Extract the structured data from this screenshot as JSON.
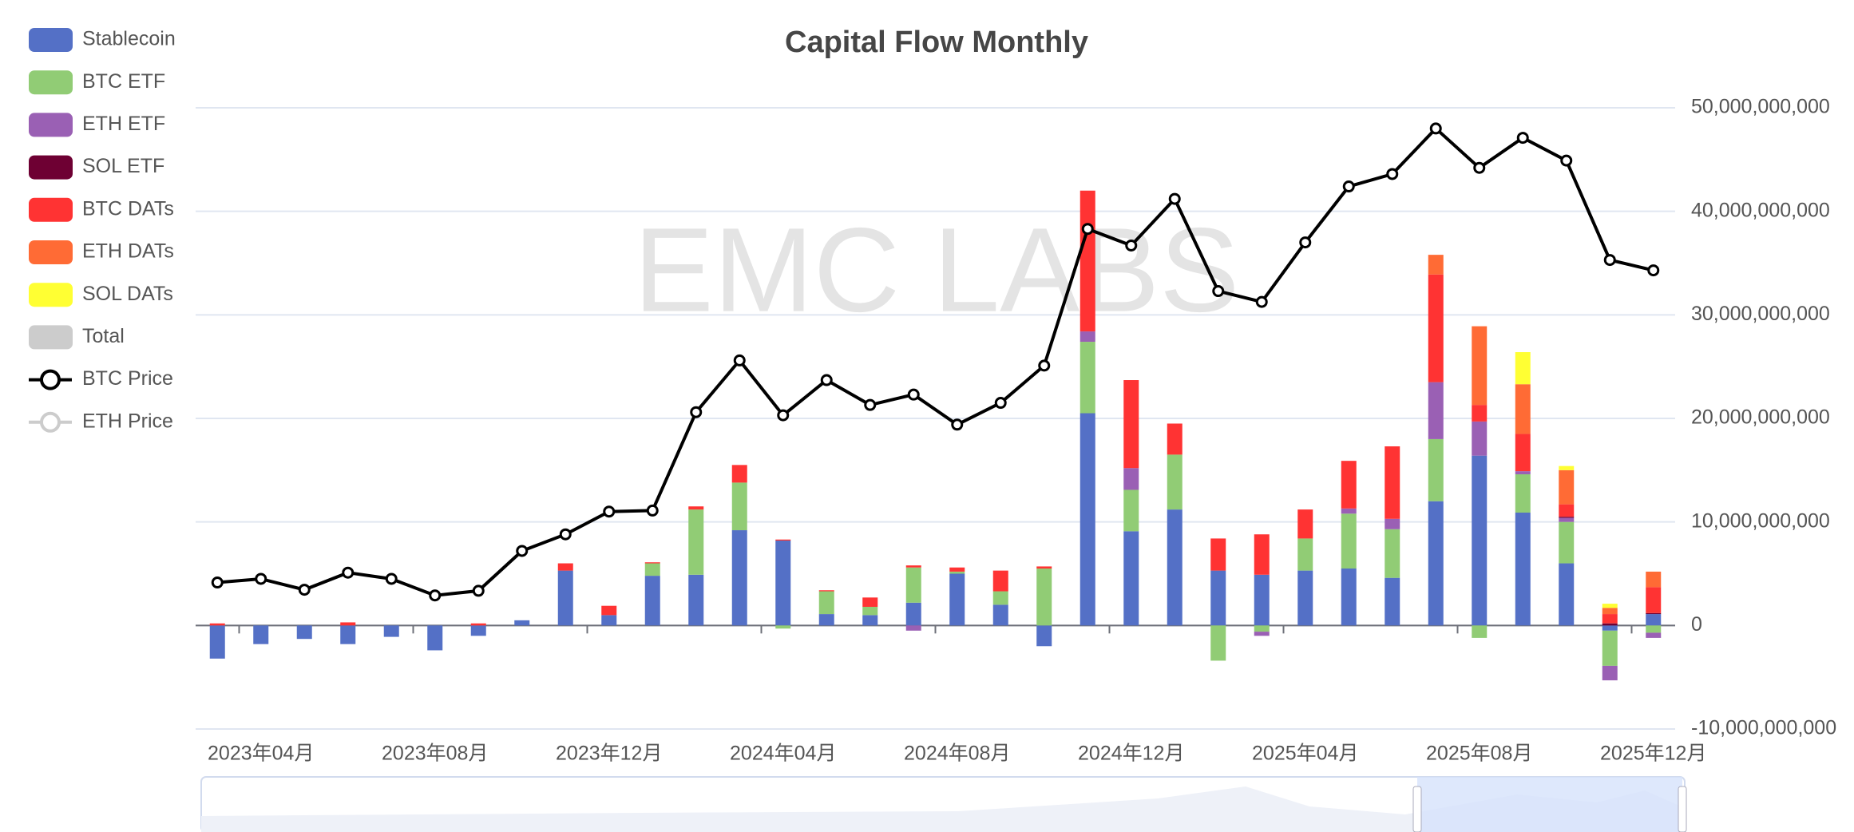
{
  "chart_data": {
    "type": "bar",
    "title": "Capital Flow Monthly",
    "watermark": "EMC LABS",
    "stacked": true,
    "grid": true,
    "legend": "top-left",
    "categories": [
      null,
      "2023年04月",
      null,
      null,
      null,
      "2023年08月",
      null,
      null,
      null,
      "2023年12月",
      null,
      null,
      null,
      "2024年04月",
      null,
      null,
      null,
      "2024年08月",
      null,
      null,
      null,
      "2024年12月",
      null,
      null,
      null,
      "2025年04月",
      null,
      null,
      null,
      "2025年08月",
      null,
      null,
      null,
      "2025年12月"
    ],
    "ylim": [
      -10000000000,
      50000000000
    ],
    "yticks": [
      {
        "value": -10000000000,
        "label": "-10,000,000,000"
      },
      0,
      {
        "value": 10000000000,
        "label": "10,000,000,000"
      },
      {
        "value": 20000000000,
        "label": "20,000,000,000"
      },
      {
        "value": 30000000000,
        "label": "30,000,000,000"
      },
      {
        "value": 40000000000,
        "label": "40,000,000,000"
      },
      {
        "value": 50000000000,
        "label": "50,000,000,000"
      }
    ],
    "y2lim": [
      0,
      120000
    ],
    "series": [
      {
        "name": "Stablecoin",
        "color": "#5470c6",
        "values": [
          -3200000000.0,
          -1800000000.0,
          -1300000000.0,
          -1800000000.0,
          -1100000000.0,
          -2400000000.0,
          -1000000000.0,
          500000000.0,
          5300000000.0,
          1000000000.0,
          4800000000.0,
          4900000000.0,
          9200000000.0,
          8200000000.0,
          1100000000.0,
          1000000000.0,
          2200000000.0,
          5000000000.0,
          2000000000.0,
          -2000000000.0,
          20500000000.0,
          9100000000.0,
          11200000000.0,
          5300000000.0,
          4900000000.0,
          5300000000.0,
          5500000000.0,
          4600000000.0,
          12000000000.0,
          16400000000.0,
          10900000000.0,
          6000000000.0,
          -500000000.0,
          1100000000.0
        ]
      },
      {
        "name": "BTC ETF",
        "color": "#91cc75",
        "values": [
          0,
          0,
          0,
          0,
          0,
          0,
          0,
          0,
          0,
          0,
          1200000000.0,
          6300000000.0,
          4600000000.0,
          -300000000.0,
          2200000000.0,
          800000000.0,
          3400000000.0,
          200000000.0,
          1300000000.0,
          5500000000.0,
          6900000000.0,
          4000000000.0,
          5300000000.0,
          -3400000000.0,
          -600000000.0,
          3100000000.0,
          5300000000.0,
          4700000000.0,
          6000000000.0,
          -1200000000.0,
          3700000000.0,
          4000000000.0,
          -3400000000.0,
          -700000000.0
        ]
      },
      {
        "name": "ETH ETF",
        "color": "#9a60b4",
        "values": [
          0,
          0,
          0,
          0,
          0,
          0,
          0,
          0,
          0,
          0,
          0,
          0,
          0,
          0,
          0,
          0,
          -500000000.0,
          0,
          0,
          0,
          1000000000.0,
          2100000000.0,
          0,
          0,
          -400000000.0,
          0,
          500000000.0,
          1000000000.0,
          5500000000.0,
          3300000000.0,
          300000000.0,
          400000000.0,
          -1400000000.0,
          -500000000.0
        ]
      },
      {
        "name": "SOL ETF",
        "color": "#6e0033",
        "values": [
          0,
          0,
          0,
          0,
          0,
          0,
          0,
          0,
          0,
          0,
          0,
          0,
          0,
          0,
          0,
          0,
          0,
          0,
          0,
          0,
          0,
          0,
          0,
          0,
          0,
          0,
          0,
          0,
          0,
          0,
          0,
          100000000.0,
          200000000.0,
          100000000.0
        ]
      },
      {
        "name": "BTC DATs",
        "color": "#ff3333",
        "values": [
          200000000.0,
          0,
          0,
          300000000.0,
          0,
          0,
          200000000.0,
          0,
          700000000.0,
          900000000.0,
          100000000.0,
          300000000.0,
          1700000000.0,
          100000000.0,
          100000000.0,
          900000000.0,
          200000000.0,
          400000000.0,
          2000000000.0,
          200000000.0,
          13600000000.0,
          8500000000.0,
          3000000000.0,
          3100000000.0,
          3900000000.0,
          2800000000.0,
          4600000000.0,
          7000000000.0,
          10400000000.0,
          1600000000.0,
          3600000000.0,
          1200000000.0,
          900000000.0,
          2500000000.0
        ]
      },
      {
        "name": "ETH DATs",
        "color": "#ff6b35",
        "values": [
          0,
          0,
          0,
          0,
          0,
          0,
          0,
          0,
          0,
          0,
          0,
          0,
          0,
          0,
          0,
          0,
          0,
          0,
          0,
          0,
          0,
          0,
          0,
          0,
          0,
          0,
          0,
          0,
          1900000000.0,
          7600000000.0,
          4800000000.0,
          3300000000.0,
          600000000.0,
          1500000000.0
        ]
      },
      {
        "name": "SOL DATs",
        "color": "#ffff33",
        "values": [
          0,
          0,
          0,
          0,
          0,
          0,
          0,
          0,
          0,
          0,
          0,
          0,
          0,
          0,
          0,
          0,
          0,
          0,
          0,
          0,
          0,
          0,
          0,
          0,
          0,
          0,
          0,
          0,
          0,
          0,
          3100000000.0,
          400000000.0,
          400000000.0,
          0
        ]
      },
      {
        "name": "BTC Price",
        "type": "line",
        "axis": "y2",
        "color": "#000000",
        "values": [
          28300,
          29000,
          26900,
          30200,
          29000,
          25800,
          26700,
          34400,
          37600,
          42000,
          42200,
          61200,
          71200,
          60600,
          67400,
          62600,
          64600,
          58800,
          63000,
          70200,
          96600,
          93400,
          102400,
          84600,
          82500,
          94000,
          104800,
          107200,
          116000,
          108400,
          114200,
          109800,
          90600,
          88600
        ]
      }
    ],
    "hidden_legend": [
      {
        "name": "Total",
        "type": "bar"
      },
      {
        "name": "ETH Price",
        "type": "line"
      }
    ]
  }
}
